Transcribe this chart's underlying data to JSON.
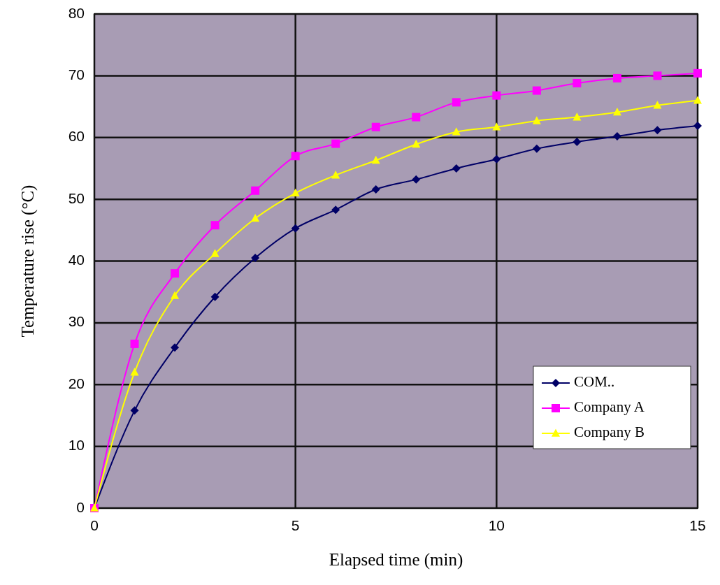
{
  "chart_data": {
    "type": "line",
    "xlabel": "Elapsed time (min)",
    "ylabel": "Temperature rise (°C)",
    "x": [
      0,
      1,
      2,
      3,
      4,
      5,
      6,
      7,
      8,
      9,
      10,
      11,
      12,
      13,
      14,
      15
    ],
    "xlim": [
      0,
      15
    ],
    "xticks": [
      0,
      5,
      10,
      15
    ],
    "ylim": [
      0,
      80
    ],
    "yticks": [
      0,
      10,
      20,
      30,
      40,
      50,
      60,
      70,
      80
    ],
    "grid": true,
    "legend": "bottom right",
    "series": [
      {
        "name": "COM..",
        "color": "#000066",
        "marker": "diamond",
        "values": [
          0,
          15.8,
          26,
          34.2,
          40.5,
          45.3,
          48.3,
          51.6,
          53.2,
          55,
          56.5,
          58.2,
          59.3,
          60.2,
          61.2,
          61.9
        ]
      },
      {
        "name": "Company A",
        "color": "#ff00ff",
        "marker": "square",
        "values": [
          0,
          26.6,
          38,
          45.8,
          51.4,
          57,
          59,
          61.7,
          63.3,
          65.7,
          66.8,
          67.6,
          68.8,
          69.6,
          70,
          70.4
        ]
      },
      {
        "name": "Company B",
        "color": "#ffff00",
        "marker": "triangle",
        "values": [
          0,
          22,
          34.4,
          41.2,
          46.9,
          51,
          53.9,
          56.3,
          58.9,
          60.9,
          61.7,
          62.7,
          63.3,
          64.1,
          65.2,
          66
        ]
      }
    ]
  }
}
